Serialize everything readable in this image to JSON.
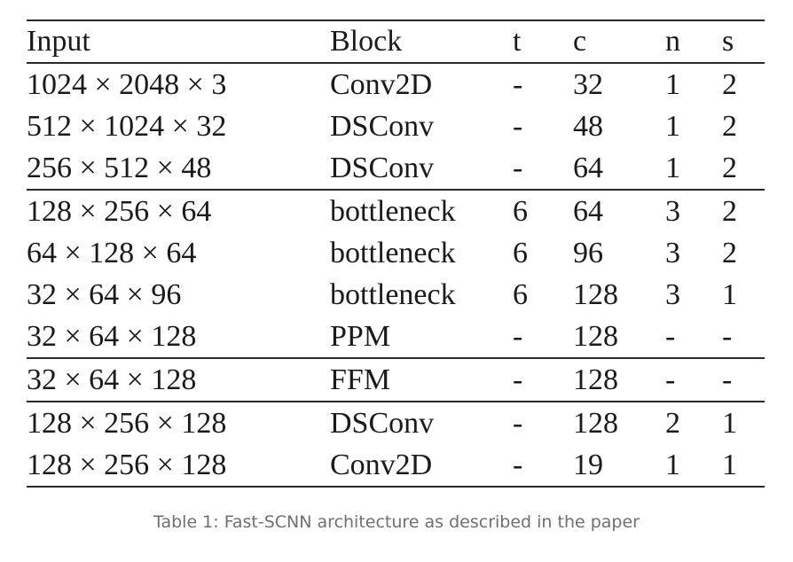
{
  "table": {
    "headers": [
      "Input",
      "Block",
      "t",
      "c",
      "n",
      "s"
    ],
    "groups": [
      [
        [
          "1024 × 2048 × 3",
          "Conv2D",
          "-",
          "32",
          "1",
          "2"
        ],
        [
          "512 × 1024 × 32",
          "DSConv",
          "-",
          "48",
          "1",
          "2"
        ],
        [
          "256 × 512 × 48",
          "DSConv",
          "-",
          "64",
          "1",
          "2"
        ]
      ],
      [
        [
          "128 × 256 × 64",
          "bottleneck",
          "6",
          "64",
          "3",
          "2"
        ],
        [
          "64 × 128 × 64",
          "bottleneck",
          "6",
          "96",
          "3",
          "2"
        ],
        [
          "32 × 64 × 96",
          "bottleneck",
          "6",
          "128",
          "3",
          "1"
        ],
        [
          "32 × 64 × 128",
          "PPM",
          "-",
          "128",
          "-",
          "-"
        ]
      ],
      [
        [
          "32 × 64 × 128",
          "FFM",
          "-",
          "128",
          "-",
          "-"
        ]
      ],
      [
        [
          "128 × 256 × 128",
          "DSConv",
          "-",
          "128",
          "2",
          "1"
        ],
        [
          "128 × 256 × 128",
          "Conv2D",
          "-",
          "19",
          "1",
          "1"
        ]
      ]
    ]
  },
  "caption": "Table 1: Fast-SCNN architecture as described in the paper"
}
